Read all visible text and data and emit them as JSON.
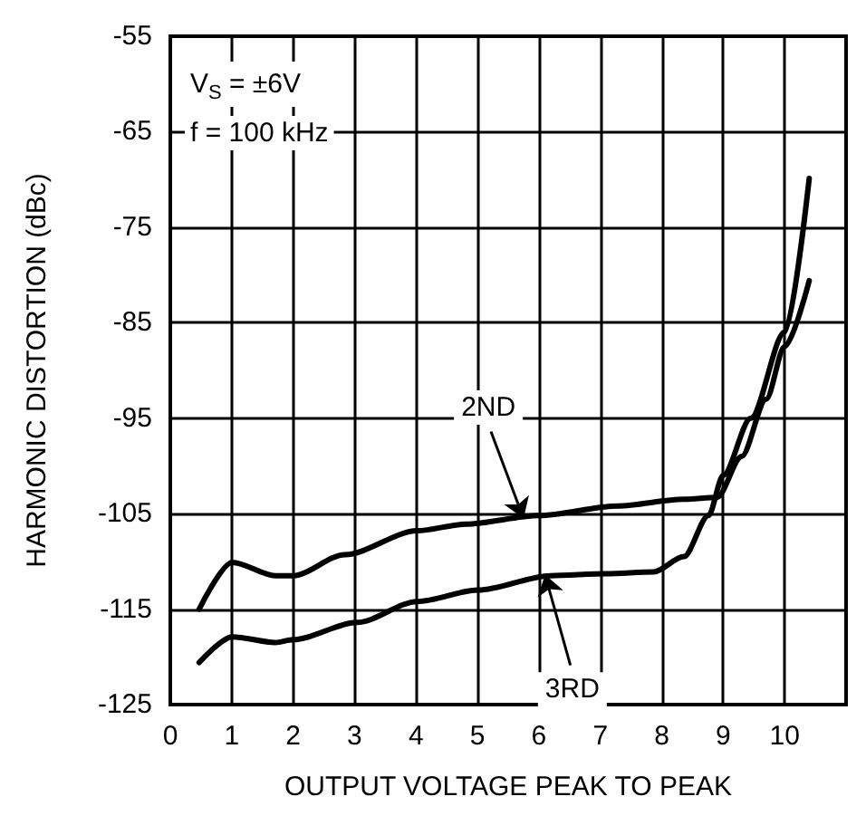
{
  "chart_data": {
    "type": "line",
    "xlabel": "OUTPUT VOLTAGE PEAK TO PEAK",
    "ylabel": "HARMONIC DISTORTION (dBc)",
    "xlim": [
      0,
      11
    ],
    "xticks": [
      0,
      1,
      2,
      3,
      4,
      5,
      6,
      7,
      8,
      9,
      10
    ],
    "ylim": [
      -125,
      -55
    ],
    "yticks": [
      -125,
      -115,
      -105,
      -95,
      -85,
      -75,
      -65,
      -55
    ],
    "grid": true,
    "marker": "none",
    "line_style": "solid",
    "series": [
      {
        "color": "#000000",
        "x": [
          0.47,
          1.01,
          1.71,
          2.0,
          2.84,
          4.02,
          4.81,
          6.0,
          7.28,
          8.36,
          8.9,
          9.3,
          9.7,
          10.0,
          10.4
        ],
        "values": [
          -115,
          -110.1,
          -111.5,
          -111.5,
          -109.3,
          -106.8,
          -106.1,
          -105.2,
          -104.2,
          -103.5,
          -103.3,
          -99,
          -93,
          -87.5,
          -80.6
        ]
      },
      {
        "color": "#000000",
        "x": [
          0.47,
          1.01,
          1.71,
          2.0,
          3.04,
          4.02,
          5.01,
          6.19,
          7.1,
          7.87,
          8.36,
          8.76,
          9.0,
          9.45,
          10.0,
          10.4
        ],
        "values": [
          -120.6,
          -117.9,
          -118.5,
          -118.2,
          -116.4,
          -114.2,
          -113.0,
          -111.5,
          -111.3,
          -111.1,
          -109.5,
          -105.2,
          -101,
          -95,
          -86,
          -69.9
        ]
      }
    ],
    "annotations": [
      "V$_{S}$ = ±6V",
      "f = 100 kHz",
      {
        "text": "2ND",
        "x": 5.75,
        "y": -105.5
      },
      {
        "text": "3RD",
        "x": 6.1,
        "y": -111.4
      }
    ]
  }
}
